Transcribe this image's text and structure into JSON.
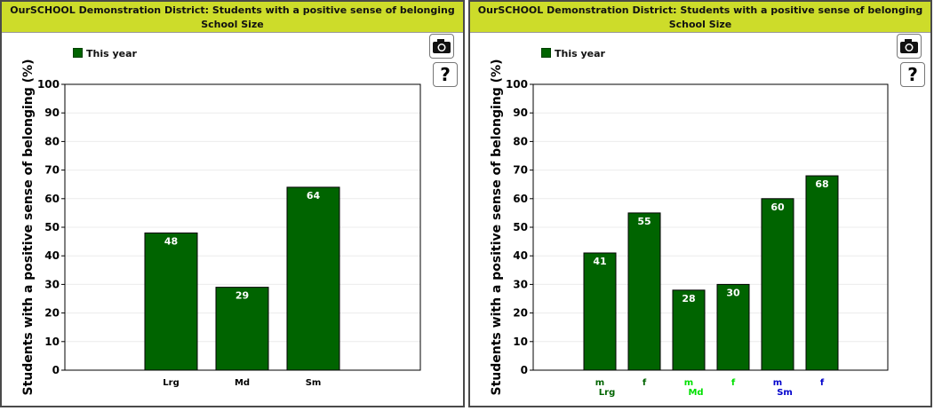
{
  "colors": {
    "title_bar": "#cddc2a",
    "bar_fill": "#006400",
    "bar_label": "#ffffff",
    "group_lrg": "#006400",
    "group_md": "#00e000",
    "group_sm": "#0000cc",
    "sex_f": "#0000cc"
  },
  "icons": {
    "camera": "camera-icon",
    "help": "question-mark-icon"
  },
  "left_panel": {
    "title_line1": "OurSCHOOL Demonstration District: Students with a positive sense of belonging",
    "title_line2": "School Size",
    "legend_label": "This year",
    "help_label": "?"
  },
  "right_panel": {
    "title_line1": "OurSCHOOL Demonstration District: Students with a positive sense of belonging",
    "title_line2": "School Size",
    "legend_label": "This year",
    "help_label": "?"
  },
  "chart_data": [
    {
      "type": "bar",
      "categories": [
        "Lrg",
        "Md",
        "Sm"
      ],
      "series": [
        {
          "name": "This year",
          "values": [
            48,
            29,
            64
          ]
        }
      ],
      "ylabel": "Students with a positive sense of belonging (%)",
      "ylim": [
        0,
        100
      ],
      "yticks": [
        0,
        10,
        20,
        30,
        40,
        50,
        60,
        70,
        80,
        90,
        100
      ],
      "data_labels": [
        "48",
        "29",
        "64"
      ],
      "grid": true,
      "legend": "top-left"
    },
    {
      "type": "bar",
      "categories": [
        "m",
        "f",
        "m",
        "f",
        "m",
        "f"
      ],
      "groups": [
        "Lrg",
        "Md",
        "Sm"
      ],
      "series": [
        {
          "name": "This year",
          "values": [
            41,
            55,
            28,
            30,
            60,
            68
          ]
        }
      ],
      "ylabel": "Students with a positive sense of belonging (%)",
      "ylim": [
        0,
        100
      ],
      "yticks": [
        0,
        10,
        20,
        30,
        40,
        50,
        60,
        70,
        80,
        90,
        100
      ],
      "data_labels": [
        "41",
        "55",
        "28",
        "30",
        "60",
        "68"
      ],
      "grid": true,
      "legend": "top-left"
    }
  ]
}
